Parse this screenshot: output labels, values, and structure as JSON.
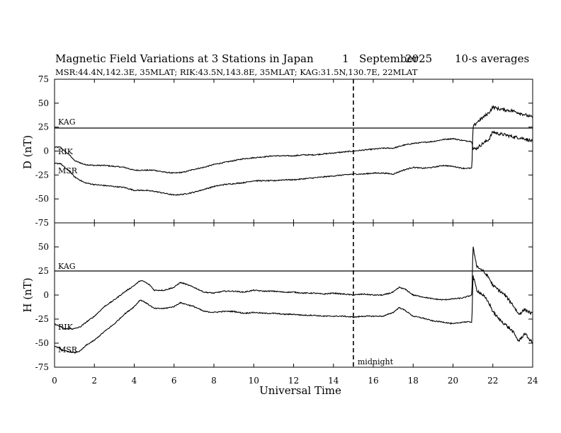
{
  "header": {
    "title": "Magnetic Field Variations at 3 Stations in Japan",
    "day": "1",
    "month": "September",
    "year": "2025",
    "averaging": "10-s averages",
    "stations_line": "MSR:44.4N,142.3E, 35MLAT;  RIK:43.5N,143.8E, 35MLAT;  KAG:31.5N,130.7E, 22MLAT"
  },
  "chart_data": {
    "type": "line",
    "xlabel": "Universal Time",
    "xlim": [
      0,
      24
    ],
    "xticks": [
      0,
      2,
      4,
      6,
      8,
      10,
      12,
      14,
      16,
      18,
      20,
      22,
      24
    ],
    "vline": {
      "x": 15,
      "style": "dashed",
      "label": "midnight"
    },
    "panels": [
      {
        "id": "D",
        "ylabel": "D (nT)",
        "ylim": [
          -75,
          75
        ],
        "yticks": [
          -75,
          -50,
          -25,
          0,
          25,
          50,
          75
        ],
        "series": [
          {
            "name": "KAG",
            "x": [
              0,
              24
            ],
            "y": [
              24,
              24
            ]
          },
          {
            "name": "RIK",
            "x": [
              0,
              0.3,
              0.5,
              0.8,
              1,
              1.5,
              2,
              2.5,
              3,
              3.5,
              4,
              4.5,
              5,
              5.5,
              6,
              6.5,
              7,
              7.5,
              8,
              8.5,
              9,
              9.5,
              10,
              10.5,
              11,
              11.5,
              12,
              12.5,
              13,
              13.5,
              14,
              14.5,
              15,
              15.5,
              16,
              16.5,
              17,
              17.5,
              18,
              18.5,
              19,
              19.5,
              20,
              20.5,
              20.95,
              21,
              21.2,
              21.5,
              21.8,
              22,
              22.3,
              22.6,
              23,
              23.3,
              23.6,
              24
            ],
            "y": [
              4,
              4,
              0,
              -5,
              -10,
              -14,
              -15,
              -15,
              -16,
              -17,
              -20,
              -20,
              -20,
              -22,
              -23,
              -22,
              -19,
              -17,
              -14,
              -12,
              -10,
              -8,
              -7,
              -6,
              -5,
              -5,
              -5,
              -4,
              -4,
              -3,
              -2,
              -1,
              0,
              1,
              2,
              3,
              3,
              6,
              8,
              9,
              10,
              12,
              13,
              11,
              10,
              2,
              3,
              8,
              12,
              20,
              18,
              17,
              15,
              14,
              13,
              10
            ]
          },
          {
            "name": "MSR",
            "x": [
              0,
              0.3,
              0.5,
              0.8,
              1,
              1.5,
              2,
              2.5,
              3,
              3.5,
              4,
              4.5,
              5,
              5.5,
              6,
              6.5,
              7,
              7.5,
              8,
              8.5,
              9,
              9.5,
              10,
              10.5,
              11,
              11.5,
              12,
              12.5,
              13,
              13.5,
              14,
              14.5,
              15,
              15.5,
              16,
              16.5,
              17,
              17.5,
              18,
              18.5,
              19,
              19.5,
              20,
              20.5,
              20.95,
              21,
              21.2,
              21.5,
              21.8,
              22,
              22.3,
              22.6,
              23,
              23.3,
              23.6,
              24
            ],
            "y": [
              -13,
              -13,
              -17,
              -22,
              -27,
              -33,
              -35,
              -36,
              -37,
              -38,
              -41,
              -41,
              -42,
              -44,
              -46,
              -45,
              -43,
              -40,
              -37,
              -35,
              -34,
              -33,
              -31,
              -31,
              -31,
              -30,
              -30,
              -29,
              -28,
              -27,
              -26,
              -25,
              -24,
              -24,
              -23,
              -23,
              -24,
              -20,
              -17,
              -18,
              -17,
              -15,
              -16,
              -18,
              -18,
              25,
              30,
              35,
              40,
              46,
              44,
              43,
              42,
              40,
              38,
              35
            ]
          }
        ],
        "annotations": [
          "KAG",
          "RIK",
          "MSR"
        ]
      },
      {
        "id": "H",
        "ylabel": "H (nT)",
        "ylim": [
          -75,
          75
        ],
        "yticks": [
          -75,
          -50,
          -25,
          0,
          25,
          50
        ],
        "series": [
          {
            "name": "KAG",
            "x": [
              0,
              24
            ],
            "y": [
              25,
              25
            ]
          },
          {
            "name": "RIK",
            "x": [
              0,
              0.5,
              1,
              1.3,
              1.6,
              2,
              2.5,
              3,
              3.5,
              4,
              4.3,
              4.5,
              4.8,
              5,
              5.5,
              6,
              6.3,
              6.5,
              7,
              7.5,
              8,
              8.5,
              9,
              9.5,
              10,
              10.5,
              11,
              11.5,
              12,
              12.5,
              13,
              13.5,
              14,
              14.5,
              15,
              15.5,
              16,
              16.5,
              17,
              17.3,
              17.6,
              18,
              18.5,
              19,
              19.5,
              20,
              20.5,
              20.95,
              21,
              21.2,
              21.5,
              21.8,
              22,
              22.3,
              22.6,
              23,
              23.3,
              23.6,
              24
            ],
            "y": [
              -30,
              -35,
              -35,
              -33,
              -28,
              -22,
              -12,
              -5,
              3,
              10,
              15,
              14,
              10,
              5,
              5,
              8,
              13,
              12,
              8,
              3,
              2,
              4,
              4,
              3,
              5,
              4,
              4,
              3,
              3,
              2,
              2,
              1,
              2,
              1,
              0,
              1,
              0,
              0,
              3,
              8,
              6,
              0,
              -2,
              -4,
              -5,
              -4,
              -3,
              0,
              50,
              30,
              25,
              18,
              10,
              5,
              0,
              -10,
              -20,
              -15,
              -20
            ]
          },
          {
            "name": "MSR",
            "x": [
              0,
              0.5,
              1,
              1.3,
              1.6,
              2,
              2.5,
              3,
              3.5,
              4,
              4.3,
              4.5,
              4.8,
              5,
              5.5,
              6,
              6.3,
              6.5,
              7,
              7.5,
              8,
              8.5,
              9,
              9.5,
              10,
              10.5,
              11,
              11.5,
              12,
              12.5,
              13,
              13.5,
              14,
              14.5,
              15,
              15.5,
              16,
              16.5,
              17,
              17.3,
              17.6,
              18,
              18.5,
              19,
              19.5,
              20,
              20.5,
              20.95,
              21,
              21.2,
              21.5,
              21.8,
              22,
              22.3,
              22.6,
              23,
              23.3,
              23.6,
              24
            ],
            "y": [
              -53,
              -58,
              -60,
              -58,
              -52,
              -47,
              -38,
              -30,
              -20,
              -12,
              -5,
              -7,
              -11,
              -14,
              -14,
              -12,
              -8,
              -9,
              -12,
              -17,
              -18,
              -17,
              -17,
              -19,
              -18,
              -19,
              -19,
              -20,
              -20,
              -21,
              -21,
              -22,
              -22,
              -22,
              -23,
              -22,
              -22,
              -22,
              -18,
              -13,
              -16,
              -22,
              -24,
              -27,
              -28,
              -30,
              -28,
              -28,
              20,
              5,
              0,
              -8,
              -17,
              -25,
              -30,
              -38,
              -48,
              -40,
              -50
            ]
          }
        ],
        "annotations": [
          "KAG",
          "RIK",
          "MSR"
        ]
      }
    ]
  }
}
